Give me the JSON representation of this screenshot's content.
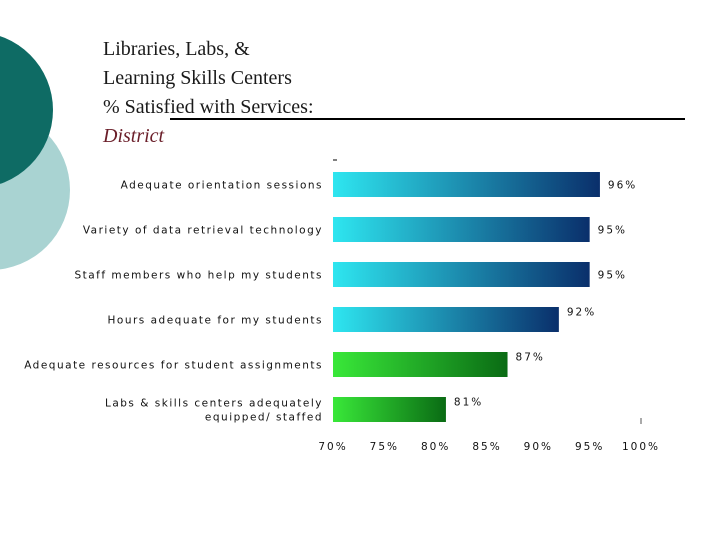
{
  "title": {
    "lines": [
      "Libraries, Labs, &",
      "Learning Skills Centers",
      "% Satisfied with Services:"
    ],
    "subtitle": "District"
  },
  "colors": {
    "deco_dark": "#0e6b64",
    "deco_light": "#a9d3d2",
    "bar_blue_light": "#2ee6f0",
    "bar_blue_dark": "#0a2f6b",
    "bar_green_light": "#39e839",
    "bar_green_dark": "#0a6b14"
  },
  "chart_data": {
    "type": "bar",
    "orientation": "horizontal",
    "categories": [
      [
        "Adequate orientation sessions"
      ],
      [
        "Variety of data retrieval technology"
      ],
      [
        "Staff members who help my students"
      ],
      [
        "Hours adequate for my students"
      ],
      [
        "Adequate resources for student assignments"
      ],
      [
        "Labs & skills centers adequately",
        "equipped/ staffed"
      ]
    ],
    "values": [
      96,
      95,
      95,
      92,
      87,
      81
    ],
    "value_labels": [
      "96%",
      "95%",
      "95%",
      "92%",
      "87%",
      "81%"
    ],
    "bar_styles": [
      "blue",
      "blue",
      "blue",
      "blue",
      "green",
      "green"
    ],
    "xlim": [
      70,
      100
    ],
    "xticks": [
      70,
      75,
      80,
      85,
      90,
      95,
      100
    ],
    "xtick_labels": [
      "70%",
      "75%",
      "80%",
      "85%",
      "90%",
      "95%",
      "100%"
    ]
  }
}
